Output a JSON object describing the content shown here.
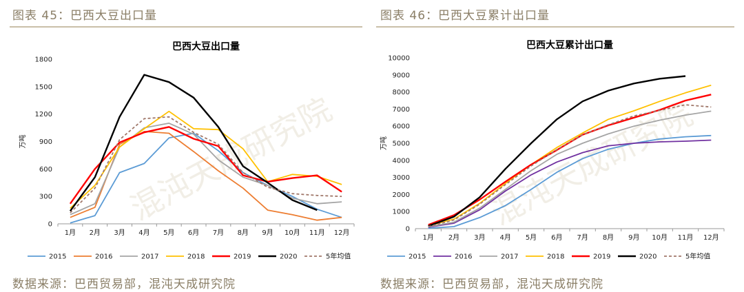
{
  "left": {
    "figure_title": "图表 45：巴西大豆出口量",
    "source": "数据来源：巴西贸易部，混沌天成研究院",
    "watermark": "混沌天成研究院"
  },
  "right": {
    "figure_title": "图表 46：巴西大豆累计出口量",
    "source": "数据来源：巴西贸易部，混沌天成研究院",
    "watermark": "混沌天成研究院"
  },
  "colors": {
    "2015": "#5b9bd5",
    "2016": "#ed7d31",
    "2017": "#a5a5a5",
    "2018": "#ffc000",
    "2019": "#ff0000",
    "2020": "#000000",
    "2016_right": "#7030a0",
    "avg": "#a0786a",
    "header": "#8a7e66"
  },
  "chart_data": [
    {
      "type": "line",
      "title": "巴西大豆出口量",
      "ylabel": "万吨",
      "categories": [
        "1月",
        "2月",
        "3月",
        "4月",
        "5月",
        "6月",
        "7月",
        "8月",
        "9月",
        "10月",
        "11月",
        "12月"
      ],
      "yticks": [
        "0",
        "300",
        "600",
        "900",
        "1200",
        "1500",
        "1800"
      ],
      "ylim": [
        0,
        1800
      ],
      "grid": false,
      "legend_position": "bottom",
      "series": [
        {
          "name": "2015",
          "values": [
            10,
            90,
            560,
            660,
            940,
            990,
            800,
            560,
            420,
            300,
            160,
            70
          ]
        },
        {
          "name": "2016",
          "values": [
            70,
            180,
            870,
            1010,
            990,
            790,
            580,
            390,
            150,
            100,
            40,
            70
          ]
        },
        {
          "name": "2017",
          "values": [
            100,
            220,
            840,
            1050,
            1100,
            980,
            700,
            510,
            420,
            280,
            220,
            240
          ]
        },
        {
          "name": "2018",
          "values": [
            170,
            420,
            840,
            1040,
            1230,
            1040,
            1030,
            820,
            460,
            540,
            520,
            430
          ]
        },
        {
          "name": "2019",
          "values": [
            220,
            600,
            890,
            1000,
            1060,
            930,
            850,
            530,
            460,
            500,
            530,
            350
          ]
        },
        {
          "name": "2020",
          "values": [
            140,
            510,
            1170,
            1630,
            1550,
            1380,
            1060,
            630,
            450,
            260,
            150,
            null
          ]
        },
        {
          "name": "5年均值",
          "values": [
            120,
            390,
            920,
            1150,
            1170,
            1000,
            870,
            560,
            400,
            330,
            310,
            300
          ]
        }
      ]
    },
    {
      "type": "line",
      "title": "巴西大豆累计出口量",
      "ylabel": "万吨",
      "categories": [
        "1月",
        "2月",
        "3月",
        "4月",
        "5月",
        "6月",
        "7月",
        "8月",
        "9月",
        "10月",
        "11月",
        "12月"
      ],
      "yticks": [
        "0",
        "1000",
        "2000",
        "3000",
        "4000",
        "5000",
        "6000",
        "7000",
        "8000",
        "9000",
        "10000"
      ],
      "ylim": [
        0,
        10000
      ],
      "grid": false,
      "legend_position": "bottom",
      "series": [
        {
          "name": "2015",
          "values": [
            20,
            120,
            650,
            1350,
            2300,
            3300,
            4100,
            4650,
            5000,
            5250,
            5380,
            5450
          ]
        },
        {
          "name": "2016",
          "values": [
            80,
            320,
            1100,
            2200,
            3150,
            3900,
            4450,
            4850,
            5000,
            5080,
            5120,
            5180
          ]
        },
        {
          "name": "2017",
          "values": [
            110,
            380,
            1200,
            2300,
            3400,
            4350,
            5000,
            5550,
            6000,
            6350,
            6650,
            6880
          ]
        },
        {
          "name": "2018",
          "values": [
            160,
            560,
            1480,
            2650,
            3750,
            4750,
            5600,
            6400,
            6900,
            7450,
            7950,
            8400
          ]
        },
        {
          "name": "2019",
          "values": [
            220,
            790,
            1700,
            2750,
            3750,
            4600,
            5500,
            6050,
            6500,
            6950,
            7500,
            7850
          ]
        },
        {
          "name": "2020",
          "values": [
            150,
            700,
            1840,
            3500,
            5000,
            6400,
            7450,
            8080,
            8500,
            8780,
            8930,
            null
          ]
        },
        {
          "name": "5年均值",
          "values": [
            120,
            510,
            1430,
            2580,
            3670,
            4630,
            5500,
            6080,
            6600,
            6920,
            7250,
            7120
          ]
        }
      ]
    }
  ]
}
